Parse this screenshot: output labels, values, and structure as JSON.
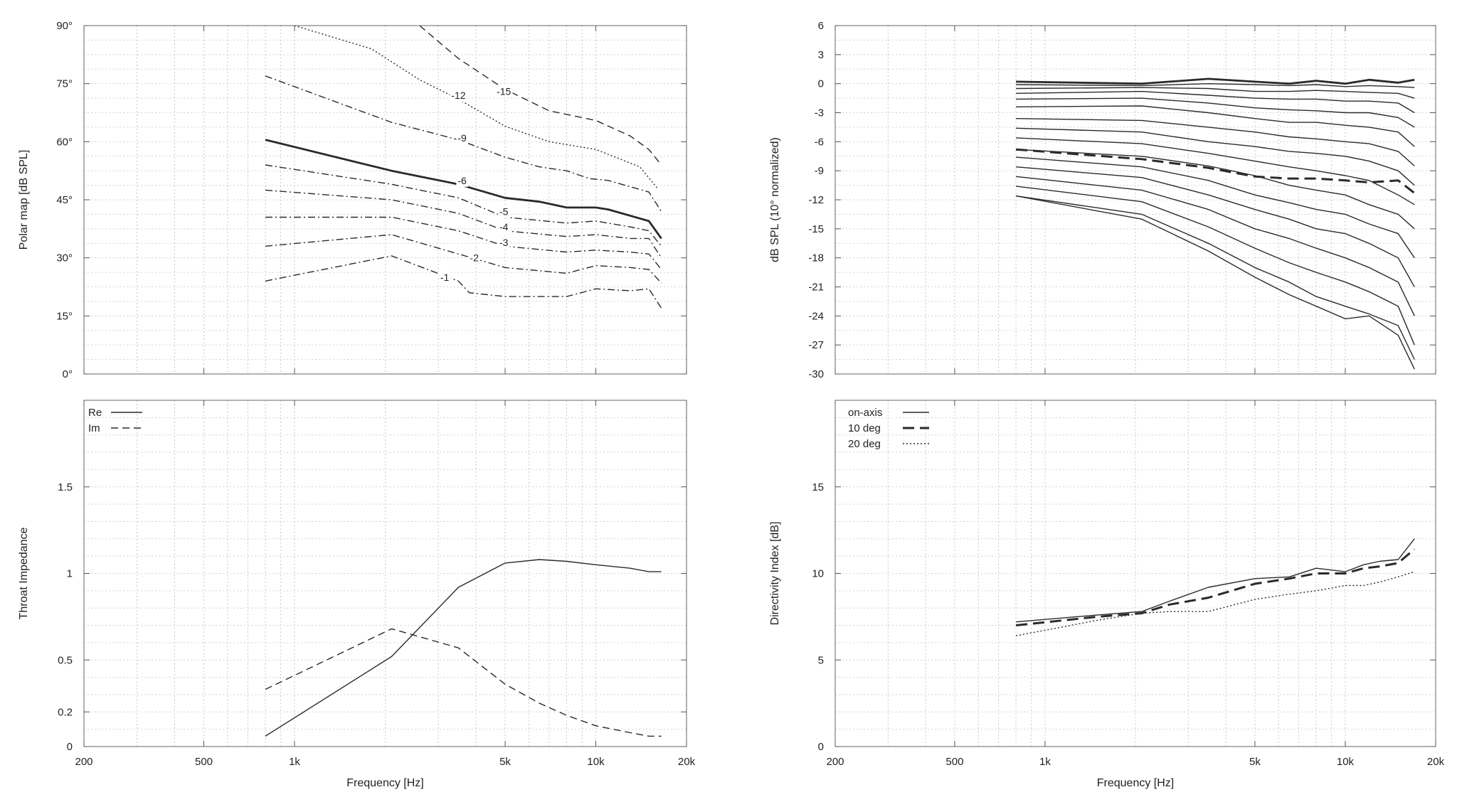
{
  "chart_data": [
    {
      "type": "line",
      "panel": "polar-map",
      "xlabel": "",
      "ylabel": "Polar map [dB SPL]",
      "xscale": "log",
      "xlim": [
        200,
        20000
      ],
      "ylim": [
        0,
        90
      ],
      "xticks": [
        200,
        500,
        1000,
        5000,
        10000,
        20000
      ],
      "xtick_labels": [
        "200",
        "500",
        "1k",
        "5k",
        "10k",
        "20k"
      ],
      "yticks": [
        0,
        15,
        30,
        45,
        60,
        75,
        90
      ],
      "ytick_labels": [
        "0°",
        "15°",
        "30°",
        "45°",
        "60°",
        "75°",
        "90°"
      ],
      "grid": true,
      "series": [
        {
          "name": "-1",
          "style": "dashdot",
          "x": [
            800,
            2100,
            3500,
            3800,
            5000,
            8000,
            10000,
            13000,
            15000,
            16500
          ],
          "y": [
            24,
            30.5,
            24,
            21,
            20,
            20,
            22,
            21.5,
            22,
            17
          ]
        },
        {
          "name": "-2",
          "style": "dashdot",
          "x": [
            800,
            2100,
            3500,
            5000,
            8000,
            10000,
            13000,
            15000,
            16500
          ],
          "y": [
            33,
            36,
            31,
            27.5,
            26,
            28,
            27.5,
            27,
            23.5
          ]
        },
        {
          "name": "-3",
          "style": "dashdot",
          "x": [
            800,
            2100,
            3500,
            5000,
            8000,
            10000,
            13000,
            15000,
            16500
          ],
          "y": [
            40.5,
            40.5,
            37,
            33,
            31.5,
            32,
            31.5,
            31,
            27
          ]
        },
        {
          "name": "-4",
          "style": "dashdot",
          "x": [
            800,
            2100,
            3500,
            5000,
            8000,
            10000,
            13000,
            15000,
            16500
          ],
          "y": [
            47.5,
            45,
            41.5,
            37,
            35.5,
            36,
            35,
            35,
            30
          ]
        },
        {
          "name": "-5",
          "style": "dashdot",
          "x": [
            800,
            2100,
            3500,
            5000,
            8000,
            10000,
            13000,
            15000,
            16500
          ],
          "y": [
            54,
            49,
            45.5,
            40.5,
            39,
            39.5,
            38,
            37,
            33
          ]
        },
        {
          "name": "-6",
          "style": "solid-bold",
          "x": [
            800,
            2100,
            3500,
            5000,
            6500,
            8000,
            10000,
            11000,
            15000,
            16500
          ],
          "y": [
            60.5,
            52.5,
            49,
            45.5,
            44.5,
            43,
            43,
            42.5,
            39.5,
            35
          ]
        },
        {
          "name": "-9",
          "style": "dashdot",
          "x": [
            800,
            2100,
            3500,
            5000,
            6500,
            8000,
            9500,
            11000,
            15000,
            16500
          ],
          "y": [
            77,
            65,
            60.5,
            56,
            53.5,
            52.5,
            50.5,
            50,
            47,
            42
          ]
        },
        {
          "name": "-12",
          "style": "dotted",
          "x": [
            1000,
            1800,
            2600,
            3500,
            5000,
            7000,
            10000,
            14000,
            16000
          ],
          "y": [
            90,
            84,
            76,
            71,
            64,
            60,
            58,
            53.5,
            48
          ]
        },
        {
          "name": "-15",
          "style": "dashed",
          "x": [
            2600,
            3500,
            5000,
            7000,
            10000,
            13000,
            15000,
            16500
          ],
          "y": [
            90,
            81.5,
            73.5,
            68,
            65.5,
            61.5,
            58,
            54
          ]
        }
      ],
      "annotations": [
        {
          "text": "-1",
          "x": 3150,
          "y": 25
        },
        {
          "text": "-2",
          "x": 3950,
          "y": 30
        },
        {
          "text": "-3",
          "x": 4950,
          "y": 34
        },
        {
          "text": "-4",
          "x": 4950,
          "y": 38
        },
        {
          "text": "-5",
          "x": 4950,
          "y": 42
        },
        {
          "text": "-6",
          "x": 3600,
          "y": 50
        },
        {
          "text": "-9",
          "x": 3600,
          "y": 61
        },
        {
          "text": "-12",
          "x": 3500,
          "y": 72
        },
        {
          "text": "-15",
          "x": 4950,
          "y": 73
        }
      ]
    },
    {
      "type": "line",
      "panel": "normalized-spl",
      "xlabel": "",
      "ylabel": "dB SPL (10° normalized)",
      "xscale": "log",
      "xlim": [
        200,
        20000
      ],
      "ylim": [
        -30,
        6
      ],
      "xticks": [
        200,
        500,
        1000,
        5000,
        10000,
        20000
      ],
      "xtick_labels": [
        "200",
        "500",
        "1k",
        "5k",
        "10k",
        "20k"
      ],
      "yticks": [
        6,
        3,
        0,
        -3,
        -6,
        -9,
        -12,
        -15,
        -18,
        -21,
        -24,
        -27,
        -30
      ],
      "ytick_labels": [
        "6",
        "3",
        "0",
        "-3",
        "-6",
        "-9",
        "-12",
        "-15",
        "-18",
        "-21",
        "-24",
        "-27",
        "-30"
      ],
      "grid": true,
      "x": [
        800,
        2100,
        3500,
        5000,
        6500,
        8000,
        10000,
        12000,
        15000,
        17000
      ],
      "series": [
        {
          "style": "solid-bold",
          "y": [
            0.2,
            0,
            0.5,
            0.2,
            0,
            0.3,
            0,
            0.4,
            0.1,
            0.4
          ]
        },
        {
          "style": "solid",
          "y": [
            -0.1,
            -0.2,
            0,
            -0.1,
            -0.2,
            -0.1,
            -0.3,
            -0.2,
            -0.3,
            -0.4
          ]
        },
        {
          "style": "solid",
          "y": [
            -0.5,
            -0.4,
            -0.5,
            -0.8,
            -0.8,
            -0.7,
            -0.8,
            -0.9,
            -1,
            -1.5
          ]
        },
        {
          "style": "solid",
          "y": [
            -1,
            -0.8,
            -1.2,
            -1.5,
            -1.6,
            -1.6,
            -1.8,
            -1.8,
            -2,
            -3
          ]
        },
        {
          "style": "solid",
          "y": [
            -1.6,
            -1.5,
            -2,
            -2.5,
            -2.7,
            -2.8,
            -3,
            -3,
            -3.5,
            -4.5
          ]
        },
        {
          "style": "solid",
          "y": [
            -2.4,
            -2.3,
            -3,
            -3.6,
            -4,
            -4,
            -4.3,
            -4.5,
            -5,
            -6.5
          ]
        },
        {
          "style": "solid",
          "y": [
            -3.6,
            -3.8,
            -4.5,
            -5,
            -5.5,
            -5.7,
            -6,
            -6.2,
            -7,
            -8.5
          ]
        },
        {
          "style": "solid",
          "y": [
            -4.6,
            -5,
            -6,
            -6.5,
            -7,
            -7.2,
            -7.5,
            -8,
            -9,
            -10.5
          ]
        },
        {
          "style": "solid",
          "y": [
            -5.6,
            -6.2,
            -7.2,
            -8,
            -8.6,
            -9,
            -9.5,
            -10,
            -11.5,
            -12.5
          ]
        },
        {
          "style": "solid",
          "y": [
            -6.8,
            -7.5,
            -8.5,
            -9.5,
            -10.5,
            -11,
            -11.5,
            -12.5,
            -13.5,
            -15
          ]
        },
        {
          "style": "solid",
          "y": [
            -7.6,
            -8.6,
            -10,
            -11.5,
            -12.3,
            -13,
            -13.5,
            -14.5,
            -15.5,
            -18
          ]
        },
        {
          "style": "solid",
          "y": [
            -8.6,
            -9.7,
            -11.5,
            -13,
            -14,
            -15,
            -15.5,
            -16.5,
            -18,
            -21
          ]
        },
        {
          "style": "solid",
          "y": [
            -9.6,
            -11,
            -13,
            -15,
            -16,
            -17,
            -18,
            -19,
            -20.5,
            -24
          ]
        },
        {
          "style": "solid",
          "y": [
            -10.6,
            -12.2,
            -14.8,
            -17,
            -18.5,
            -19.5,
            -20.5,
            -21.5,
            -23,
            -27
          ]
        },
        {
          "style": "solid",
          "y": [
            -11.6,
            -13.5,
            -16.5,
            -19,
            -20.5,
            -22,
            -23,
            -23.8,
            -25,
            -28.5
          ]
        },
        {
          "style": "solid",
          "y": [
            -11.6,
            -14,
            -17.3,
            -20,
            -21.8,
            -23,
            -24.3,
            -24,
            -26,
            -29.5
          ]
        },
        {
          "style": "dashed-bold",
          "y": [
            -6.8,
            -7.8,
            -8.7,
            -9.6,
            -9.8,
            -9.8,
            -10,
            -10.2,
            -10,
            -11.3
          ]
        }
      ]
    },
    {
      "type": "line",
      "panel": "throat-impedance",
      "xlabel": "Frequency [Hz]",
      "ylabel": "Throat Impedance",
      "xscale": "log",
      "xlim": [
        200,
        20000
      ],
      "ylim": [
        0,
        2
      ],
      "xticks": [
        200,
        500,
        1000,
        5000,
        10000,
        20000
      ],
      "xtick_labels": [
        "200",
        "500",
        "1k",
        "5k",
        "10k",
        "20k"
      ],
      "yticks": [
        0,
        0.2,
        0.5,
        1,
        1.5
      ],
      "ytick_labels": [
        "0",
        "0.2",
        "0.5",
        "1",
        "1.5"
      ],
      "grid": true,
      "legend": "top-left",
      "series": [
        {
          "name": "Re",
          "style": "solid",
          "x": [
            800,
            2100,
            3500,
            5000,
            6500,
            8000,
            10000,
            13000,
            15000,
            16500
          ],
          "y": [
            0.06,
            0.52,
            0.92,
            1.06,
            1.08,
            1.07,
            1.05,
            1.03,
            1.01,
            1.01
          ]
        },
        {
          "name": "Im",
          "style": "dashed",
          "x": [
            800,
            2100,
            3500,
            5000,
            6500,
            8000,
            10000,
            13000,
            15000,
            16500
          ],
          "y": [
            0.33,
            0.68,
            0.57,
            0.36,
            0.25,
            0.18,
            0.12,
            0.08,
            0.06,
            0.06
          ]
        }
      ]
    },
    {
      "type": "line",
      "panel": "directivity-index",
      "xlabel": "Frequency [Hz]",
      "ylabel": "Directivity Index [dB]",
      "xscale": "log",
      "xlim": [
        200,
        20000
      ],
      "ylim": [
        0,
        20
      ],
      "xticks": [
        200,
        500,
        1000,
        5000,
        10000,
        20000
      ],
      "xtick_labels": [
        "200",
        "500",
        "1k",
        "5k",
        "10k",
        "20k"
      ],
      "yticks": [
        0,
        5,
        10,
        15
      ],
      "ytick_labels": [
        "0",
        "5",
        "10",
        "15"
      ],
      "grid": true,
      "legend": "top-left",
      "series": [
        {
          "name": "on-axis",
          "style": "solid",
          "x": [
            800,
            1500,
            2100,
            2600,
            3500,
            5000,
            6500,
            8000,
            10000,
            11500,
            13000,
            15000,
            17000
          ],
          "y": [
            7.2,
            7.6,
            7.8,
            8.4,
            9.2,
            9.7,
            9.8,
            10.3,
            10.1,
            10.5,
            10.7,
            10.8,
            12
          ]
        },
        {
          "name": "10 deg",
          "style": "dashed-bold",
          "x": [
            800,
            1500,
            2100,
            2600,
            3500,
            5000,
            6500,
            8000,
            10000,
            11500,
            13000,
            15000,
            17000
          ],
          "y": [
            7,
            7.5,
            7.7,
            8.2,
            8.6,
            9.4,
            9.7,
            10,
            10,
            10.3,
            10.4,
            10.6,
            11.4
          ]
        },
        {
          "name": "20 deg",
          "style": "dotted",
          "x": [
            800,
            1500,
            2100,
            2600,
            3500,
            5000,
            6500,
            8000,
            10000,
            11500,
            13000,
            15000,
            17000
          ],
          "y": [
            6.4,
            7.3,
            7.7,
            7.8,
            7.8,
            8.5,
            8.8,
            9,
            9.3,
            9.3,
            9.5,
            9.8,
            10.1
          ]
        }
      ]
    }
  ]
}
